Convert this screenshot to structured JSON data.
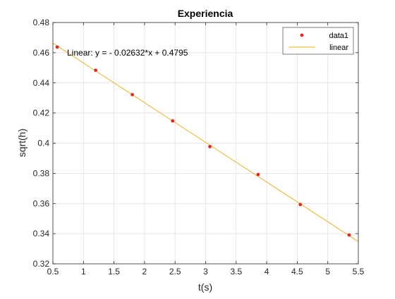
{
  "chart_data": {
    "type": "scatter",
    "title": "Experiencia",
    "xlabel": "t(s)",
    "ylabel": "sqrt(h)",
    "xlim": [
      0.5,
      5.5
    ],
    "ylim": [
      0.32,
      0.48
    ],
    "xticks": [
      "0.5",
      "1",
      "1.5",
      "2",
      "2.5",
      "3",
      "3.5",
      "4",
      "4.5",
      "5",
      "5.5"
    ],
    "yticks": [
      "0.32",
      "0.34",
      "0.36",
      "0.38",
      "0.4",
      "0.42",
      "0.44",
      "0.46",
      "0.48"
    ],
    "grid": true,
    "legend_position": "top-right",
    "annotation": "Linear:  y = - 0.02632*x + 0.4795",
    "series": [
      {
        "name": "data1",
        "kind": "markers",
        "color": "#e8251f",
        "x": [
          0.57,
          1.2,
          1.8,
          2.46,
          3.07,
          3.86,
          4.55,
          5.35
        ],
        "y": [
          0.4637,
          0.4483,
          0.4322,
          0.4148,
          0.3977,
          0.3792,
          0.3593,
          0.3391
        ]
      },
      {
        "name": "linear",
        "kind": "line",
        "color": "#edb120",
        "slope": -0.02632,
        "intercept": 0.4795,
        "x": [
          0.5,
          5.5
        ]
      }
    ]
  }
}
